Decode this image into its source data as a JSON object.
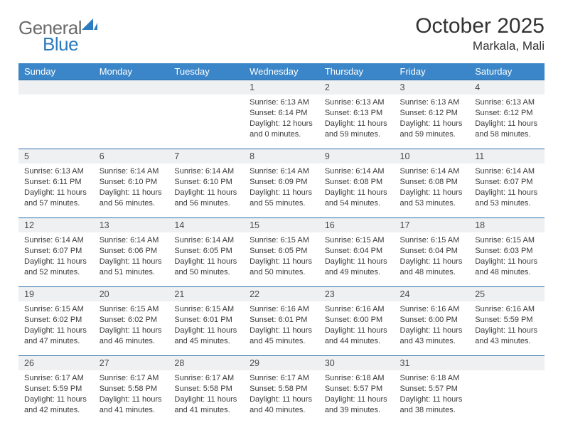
{
  "brand": {
    "name1": "General",
    "name2": "Blue",
    "mark_color": "#2b7bbf",
    "gray": "#6b6b6b"
  },
  "title": "October 2025",
  "location": "Markala, Mali",
  "colors": {
    "header_bg": "#3b86c8",
    "header_text": "#ffffff",
    "daynum_bg": "#eef0f2",
    "row_divider": "#2f6ea8",
    "body_text": "#3a3a3a",
    "page_bg": "#ffffff"
  },
  "weekdays": [
    "Sunday",
    "Monday",
    "Tuesday",
    "Wednesday",
    "Thursday",
    "Friday",
    "Saturday"
  ],
  "weeks": [
    {
      "nums": [
        "",
        "",
        "",
        "1",
        "2",
        "3",
        "4"
      ],
      "infos": [
        "",
        "",
        "",
        "Sunrise: 6:13 AM\nSunset: 6:14 PM\nDaylight: 12 hours and 0 minutes.",
        "Sunrise: 6:13 AM\nSunset: 6:13 PM\nDaylight: 11 hours and 59 minutes.",
        "Sunrise: 6:13 AM\nSunset: 6:12 PM\nDaylight: 11 hours and 59 minutes.",
        "Sunrise: 6:13 AM\nSunset: 6:12 PM\nDaylight: 11 hours and 58 minutes."
      ]
    },
    {
      "nums": [
        "5",
        "6",
        "7",
        "8",
        "9",
        "10",
        "11"
      ],
      "infos": [
        "Sunrise: 6:13 AM\nSunset: 6:11 PM\nDaylight: 11 hours and 57 minutes.",
        "Sunrise: 6:14 AM\nSunset: 6:10 PM\nDaylight: 11 hours and 56 minutes.",
        "Sunrise: 6:14 AM\nSunset: 6:10 PM\nDaylight: 11 hours and 56 minutes.",
        "Sunrise: 6:14 AM\nSunset: 6:09 PM\nDaylight: 11 hours and 55 minutes.",
        "Sunrise: 6:14 AM\nSunset: 6:08 PM\nDaylight: 11 hours and 54 minutes.",
        "Sunrise: 6:14 AM\nSunset: 6:08 PM\nDaylight: 11 hours and 53 minutes.",
        "Sunrise: 6:14 AM\nSunset: 6:07 PM\nDaylight: 11 hours and 53 minutes."
      ]
    },
    {
      "nums": [
        "12",
        "13",
        "14",
        "15",
        "16",
        "17",
        "18"
      ],
      "infos": [
        "Sunrise: 6:14 AM\nSunset: 6:07 PM\nDaylight: 11 hours and 52 minutes.",
        "Sunrise: 6:14 AM\nSunset: 6:06 PM\nDaylight: 11 hours and 51 minutes.",
        "Sunrise: 6:14 AM\nSunset: 6:05 PM\nDaylight: 11 hours and 50 minutes.",
        "Sunrise: 6:15 AM\nSunset: 6:05 PM\nDaylight: 11 hours and 50 minutes.",
        "Sunrise: 6:15 AM\nSunset: 6:04 PM\nDaylight: 11 hours and 49 minutes.",
        "Sunrise: 6:15 AM\nSunset: 6:04 PM\nDaylight: 11 hours and 48 minutes.",
        "Sunrise: 6:15 AM\nSunset: 6:03 PM\nDaylight: 11 hours and 48 minutes."
      ]
    },
    {
      "nums": [
        "19",
        "20",
        "21",
        "22",
        "23",
        "24",
        "25"
      ],
      "infos": [
        "Sunrise: 6:15 AM\nSunset: 6:02 PM\nDaylight: 11 hours and 47 minutes.",
        "Sunrise: 6:15 AM\nSunset: 6:02 PM\nDaylight: 11 hours and 46 minutes.",
        "Sunrise: 6:15 AM\nSunset: 6:01 PM\nDaylight: 11 hours and 45 minutes.",
        "Sunrise: 6:16 AM\nSunset: 6:01 PM\nDaylight: 11 hours and 45 minutes.",
        "Sunrise: 6:16 AM\nSunset: 6:00 PM\nDaylight: 11 hours and 44 minutes.",
        "Sunrise: 6:16 AM\nSunset: 6:00 PM\nDaylight: 11 hours and 43 minutes.",
        "Sunrise: 6:16 AM\nSunset: 5:59 PM\nDaylight: 11 hours and 43 minutes."
      ]
    },
    {
      "nums": [
        "26",
        "27",
        "28",
        "29",
        "30",
        "31",
        ""
      ],
      "infos": [
        "Sunrise: 6:17 AM\nSunset: 5:59 PM\nDaylight: 11 hours and 42 minutes.",
        "Sunrise: 6:17 AM\nSunset: 5:58 PM\nDaylight: 11 hours and 41 minutes.",
        "Sunrise: 6:17 AM\nSunset: 5:58 PM\nDaylight: 11 hours and 41 minutes.",
        "Sunrise: 6:17 AM\nSunset: 5:58 PM\nDaylight: 11 hours and 40 minutes.",
        "Sunrise: 6:18 AM\nSunset: 5:57 PM\nDaylight: 11 hours and 39 minutes.",
        "Sunrise: 6:18 AM\nSunset: 5:57 PM\nDaylight: 11 hours and 38 minutes.",
        ""
      ]
    }
  ]
}
